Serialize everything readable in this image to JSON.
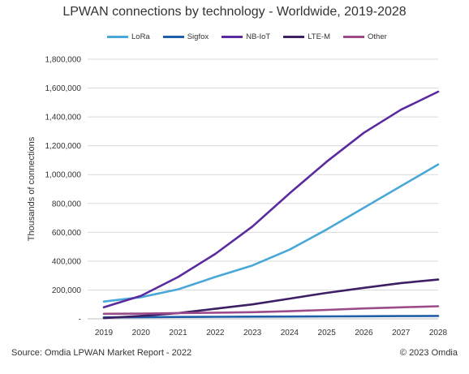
{
  "chart_data": {
    "type": "line",
    "title": "LPWAN connections by technology - Worldwide, 2019-2028",
    "ylabel": "Thousands of connections",
    "xlabel": "",
    "categories": [
      "2019",
      "2020",
      "2021",
      "2022",
      "2023",
      "2024",
      "2025",
      "2026",
      "2027",
      "2028"
    ],
    "y_ticks": [
      0,
      200000,
      400000,
      600000,
      800000,
      1000000,
      1200000,
      1400000,
      1600000,
      1800000
    ],
    "y_tick_labels": [
      "-",
      "200,000",
      "400,000",
      "600,000",
      "800,000",
      "1,000,000",
      "1,200,000",
      "1,400,000",
      "1,600,000",
      "1,800,000"
    ],
    "ylim": [
      0,
      1800000
    ],
    "grid": true,
    "legend_position": "top",
    "series": [
      {
        "name": "LoRa",
        "color": "#4aa8d8",
        "values": [
          120000,
          150000,
          205000,
          290000,
          370000,
          480000,
          620000,
          770000,
          920000,
          1070000
        ]
      },
      {
        "name": "Sigfox",
        "color": "#1f5ea8",
        "values": [
          10000,
          12000,
          13000,
          14000,
          15000,
          16000,
          17000,
          18000,
          19000,
          20000
        ]
      },
      {
        "name": "NB-IoT",
        "color": "#5b2a9e",
        "values": [
          80000,
          160000,
          290000,
          450000,
          640000,
          870000,
          1090000,
          1290000,
          1450000,
          1575000
        ]
      },
      {
        "name": "LTE-M",
        "color": "#3d1f66",
        "values": [
          5000,
          20000,
          40000,
          70000,
          100000,
          140000,
          180000,
          215000,
          248000,
          272000
        ]
      },
      {
        "name": "Other",
        "color": "#9b4a8a",
        "values": [
          35000,
          36000,
          40000,
          43000,
          46000,
          53000,
          62000,
          72000,
          80000,
          87000
        ]
      }
    ]
  },
  "footer": {
    "source": "Source: Omdia LPWAN Market Report - 2022",
    "copyright": "© 2023 Omdia"
  }
}
